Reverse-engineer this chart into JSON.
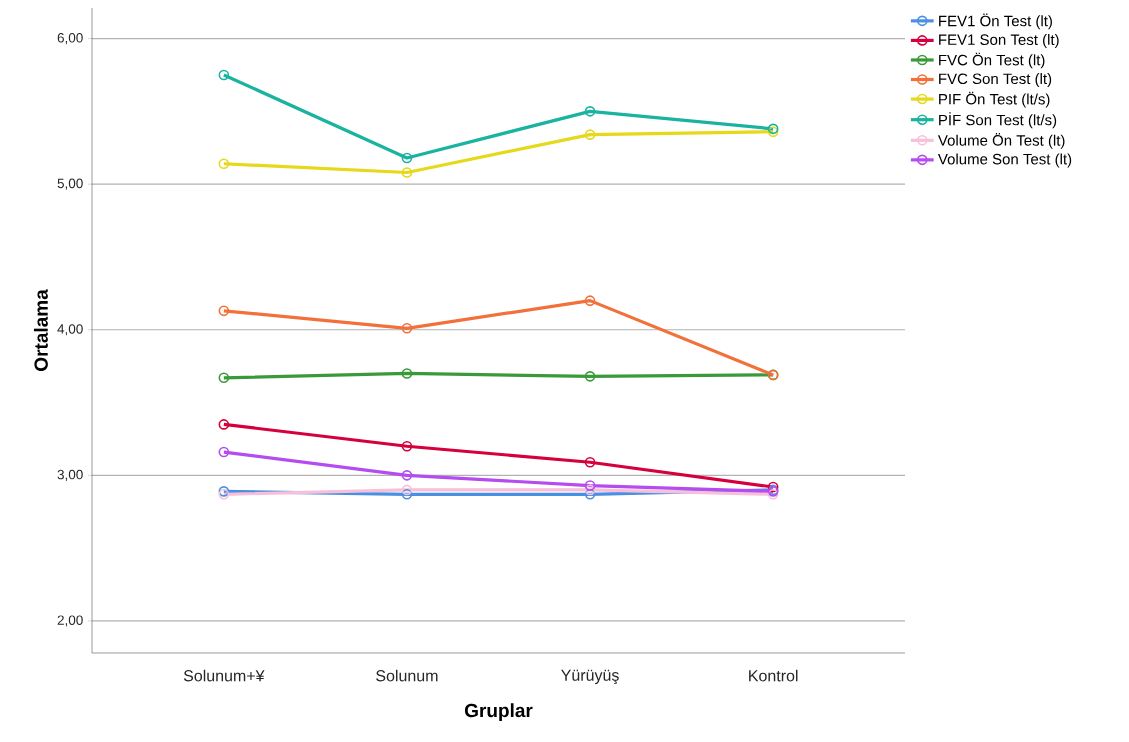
{
  "chart_data": {
    "type": "line",
    "xlabel": "Gruplar",
    "ylabel": "Ortalama",
    "categories": [
      "Solunum+¥",
      "Solunum",
      "Yürüyüş",
      "Kontrol"
    ],
    "series": [
      {
        "name": "FEV1 Ön Test (lt)",
        "color": "#4a90e2",
        "values": [
          2.89,
          2.87,
          2.87,
          2.9
        ]
      },
      {
        "name": "FEV1 Son Test (lt)",
        "color": "#d6003c",
        "values": [
          3.35,
          3.2,
          3.09,
          2.92
        ]
      },
      {
        "name": "FVC Ön Test (lt)",
        "color": "#3a9a3a",
        "values": [
          3.67,
          3.7,
          3.68,
          3.69
        ]
      },
      {
        "name": "FVC Son Test (lt)",
        "color": "#f2703a",
        "values": [
          4.13,
          4.01,
          4.2,
          3.69
        ]
      },
      {
        "name": "PIF Ön Test (lt/s)",
        "color": "#e6d81a",
        "values": [
          5.14,
          5.08,
          5.34,
          5.36
        ]
      },
      {
        "name": "PİF Son Test (lt/s)",
        "color": "#1ab3a0",
        "values": [
          5.75,
          5.18,
          5.5,
          5.38
        ]
      },
      {
        "name": "Volume Ön Test (lt)",
        "color": "#f7bfd9",
        "values": [
          2.87,
          2.9,
          2.9,
          2.87
        ]
      },
      {
        "name": "Volume Son Test (lt)",
        "color": "#b44cf0",
        "values": [
          3.16,
          3.0,
          2.93,
          2.89
        ]
      }
    ],
    "ylim": [
      1.78,
      6.21
    ],
    "yticks": [
      {
        "value": 2,
        "label": "2,00"
      },
      {
        "value": 3,
        "label": "3,00"
      },
      {
        "value": 4,
        "label": "4,00"
      },
      {
        "value": 5,
        "label": "5,00"
      },
      {
        "value": 6,
        "label": "6,00"
      }
    ],
    "grid": "y",
    "legend": "top right",
    "marker": "circle",
    "line_style": "solid"
  }
}
